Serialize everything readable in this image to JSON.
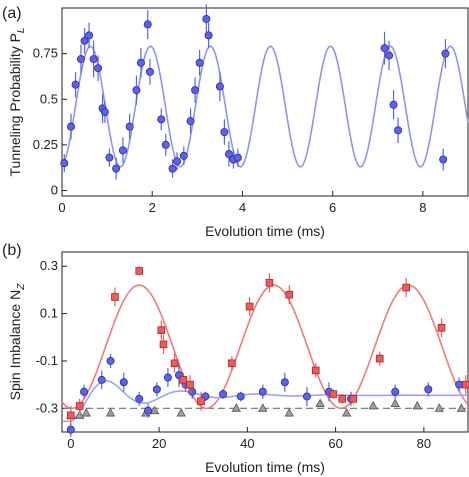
{
  "chart_data": [
    {
      "panel_label": "(a)",
      "type": "scatter",
      "xlabel": "Evolution time (ms)",
      "ylabel_main": "Tunneling Probability P",
      "ylabel_sub": "L",
      "xlim": [
        0,
        9
      ],
      "ylim": [
        -0.03,
        1.0
      ],
      "xticks": [
        0,
        2,
        4,
        6,
        8
      ],
      "yticks": [
        0,
        0.25,
        0.5,
        0.75
      ],
      "ytick_labels": [
        "0",
        "0.25",
        "0.5",
        "0.75"
      ],
      "grid": false,
      "colors": {
        "points": "#5b62ee",
        "fit": "#8f95ec",
        "error": "#5b62ee"
      },
      "fit": {
        "period_ms": 1.33,
        "amplitude": 0.33,
        "offset": 0.46,
        "phase_ms": 0.63
      },
      "points": [
        {
          "x": 0.05,
          "y": 0.15,
          "e": 0.05
        },
        {
          "x": 0.2,
          "y": 0.35,
          "e": 0.07
        },
        {
          "x": 0.3,
          "y": 0.58,
          "e": 0.07
        },
        {
          "x": 0.42,
          "y": 0.72,
          "e": 0.08
        },
        {
          "x": 0.5,
          "y": 0.82,
          "e": 0.07
        },
        {
          "x": 0.6,
          "y": 0.85,
          "e": 0.07
        },
        {
          "x": 0.7,
          "y": 0.72,
          "e": 0.1
        },
        {
          "x": 0.8,
          "y": 0.67,
          "e": 0.07
        },
        {
          "x": 0.9,
          "y": 0.45,
          "e": 0.08
        },
        {
          "x": 0.95,
          "y": 0.43,
          "e": 0.06
        },
        {
          "x": 1.05,
          "y": 0.18,
          "e": 0.05
        },
        {
          "x": 1.2,
          "y": 0.12,
          "e": 0.06
        },
        {
          "x": 1.35,
          "y": 0.22,
          "e": 0.07
        },
        {
          "x": 1.5,
          "y": 0.35,
          "e": 0.07
        },
        {
          "x": 1.65,
          "y": 0.55,
          "e": 0.08
        },
        {
          "x": 1.75,
          "y": 0.7,
          "e": 0.08
        },
        {
          "x": 1.9,
          "y": 0.91,
          "e": 0.08
        },
        {
          "x": 1.95,
          "y": 0.65,
          "e": 0.07
        },
        {
          "x": 2.2,
          "y": 0.39,
          "e": 0.06
        },
        {
          "x": 2.3,
          "y": 0.25,
          "e": 0.06
        },
        {
          "x": 2.45,
          "y": 0.12,
          "e": 0.05
        },
        {
          "x": 2.55,
          "y": 0.16,
          "e": 0.05
        },
        {
          "x": 2.7,
          "y": 0.19,
          "e": 0.05
        },
        {
          "x": 2.85,
          "y": 0.38,
          "e": 0.07
        },
        {
          "x": 2.95,
          "y": 0.55,
          "e": 0.07
        },
        {
          "x": 3.05,
          "y": 0.7,
          "e": 0.07
        },
        {
          "x": 3.2,
          "y": 0.94,
          "e": 0.08
        },
        {
          "x": 3.25,
          "y": 0.85,
          "e": 0.07
        },
        {
          "x": 3.5,
          "y": 0.57,
          "e": 0.08
        },
        {
          "x": 3.6,
          "y": 0.32,
          "e": 0.07
        },
        {
          "x": 3.7,
          "y": 0.2,
          "e": 0.07
        },
        {
          "x": 3.8,
          "y": 0.17,
          "e": 0.05
        },
        {
          "x": 3.9,
          "y": 0.18,
          "e": 0.05
        },
        {
          "x": 7.15,
          "y": 0.78,
          "e": 0.09
        },
        {
          "x": 7.25,
          "y": 0.74,
          "e": 0.08
        },
        {
          "x": 7.35,
          "y": 0.47,
          "e": 0.08
        },
        {
          "x": 7.45,
          "y": 0.33,
          "e": 0.07
        },
        {
          "x": 8.45,
          "y": 0.17,
          "e": 0.06
        },
        {
          "x": 8.5,
          "y": 0.75,
          "e": 0.08
        }
      ]
    },
    {
      "panel_label": "(b)",
      "type": "scatter",
      "xlabel": "Evolution time (ms)",
      "ylabel_main": "Spin Imbalance N",
      "ylabel_sub": "Z",
      "xlim": [
        -2,
        90
      ],
      "ylim": [
        -0.4,
        0.36
      ],
      "xticks": [
        0,
        20,
        40,
        60,
        80
      ],
      "yticks": [
        -0.3,
        -0.1,
        0.1,
        0.3
      ],
      "ytick_labels": [
        "-0.3",
        "-0.1",
        "0.1",
        "0.3"
      ],
      "grid": false,
      "dashed_line_y": -0.3,
      "colors": {
        "red": "#ef5b5b",
        "red_fit": "#ef7a7a",
        "blue": "#5b62ee",
        "blue_fit": "#9da3f0",
        "gray": "#a0a0a0",
        "dashed": "#707070"
      },
      "red_fit": {
        "period_ms": 30.5,
        "amplitude": 0.26,
        "offset": -0.04,
        "peak_ms": 15.5,
        "floor": -0.3
      },
      "blue_fit": {
        "offset": -0.245,
        "amplitude": 0.11,
        "decay_ms": 14,
        "peak_ms": 8.5
      },
      "red_points": [
        {
          "x": 0,
          "y": -0.33,
          "e": 0.04
        },
        {
          "x": 2,
          "y": -0.29,
          "e": 0.03
        },
        {
          "x": 10,
          "y": 0.17,
          "e": 0.04
        },
        {
          "x": 15.5,
          "y": 0.28,
          "e": 0.02
        },
        {
          "x": 20.5,
          "y": 0.03,
          "e": 0.04
        },
        {
          "x": 21,
          "y": -0.03,
          "e": 0.04
        },
        {
          "x": 23.5,
          "y": -0.11,
          "e": 0.04
        },
        {
          "x": 25.5,
          "y": -0.18,
          "e": 0.03
        },
        {
          "x": 27,
          "y": -0.2,
          "e": 0.04
        },
        {
          "x": 29.5,
          "y": -0.27,
          "e": 0.04
        },
        {
          "x": 36.5,
          "y": -0.11,
          "e": 0.03
        },
        {
          "x": 40.5,
          "y": 0.13,
          "e": 0.04
        },
        {
          "x": 45,
          "y": 0.23,
          "e": 0.04
        },
        {
          "x": 49.5,
          "y": 0.18,
          "e": 0.04
        },
        {
          "x": 55.5,
          "y": -0.14,
          "e": 0.03
        },
        {
          "x": 59.5,
          "y": -0.24,
          "e": 0.02
        },
        {
          "x": 61.5,
          "y": -0.26,
          "e": 0.02
        },
        {
          "x": 64,
          "y": -0.26,
          "e": 0.02
        },
        {
          "x": 70,
          "y": -0.09,
          "e": 0.03
        },
        {
          "x": 76,
          "y": 0.21,
          "e": 0.04
        },
        {
          "x": 84,
          "y": 0.04,
          "e": 0.04
        },
        {
          "x": 89.5,
          "y": -0.2,
          "e": 0.04
        }
      ],
      "blue_points": [
        {
          "x": 0,
          "y": -0.39,
          "e": 0.03
        },
        {
          "x": 3,
          "y": -0.23,
          "e": 0.03
        },
        {
          "x": 7,
          "y": -0.18,
          "e": 0.04
        },
        {
          "x": 9,
          "y": -0.1,
          "e": 0.03
        },
        {
          "x": 12,
          "y": -0.19,
          "e": 0.04
        },
        {
          "x": 15.5,
          "y": -0.26,
          "e": 0.03
        },
        {
          "x": 17.5,
          "y": -0.31,
          "e": 0.03
        },
        {
          "x": 19.5,
          "y": -0.22,
          "e": 0.03
        },
        {
          "x": 22,
          "y": -0.17,
          "e": 0.04
        },
        {
          "x": 24.5,
          "y": -0.16,
          "e": 0.05
        },
        {
          "x": 26,
          "y": -0.2,
          "e": 0.03
        },
        {
          "x": 27.5,
          "y": -0.23,
          "e": 0.03
        },
        {
          "x": 30.5,
          "y": -0.25,
          "e": 0.02
        },
        {
          "x": 34.5,
          "y": -0.24,
          "e": 0.02
        },
        {
          "x": 38.5,
          "y": -0.25,
          "e": 0.02
        },
        {
          "x": 43.5,
          "y": -0.23,
          "e": 0.03
        },
        {
          "x": 48.5,
          "y": -0.19,
          "e": 0.04
        },
        {
          "x": 53.5,
          "y": -0.25,
          "e": 0.04
        },
        {
          "x": 58.5,
          "y": -0.23,
          "e": 0.04
        },
        {
          "x": 63.5,
          "y": -0.26,
          "e": 0.03
        },
        {
          "x": 73.5,
          "y": -0.23,
          "e": 0.03
        },
        {
          "x": 81,
          "y": -0.22,
          "e": 0.03
        },
        {
          "x": 88,
          "y": -0.2,
          "e": 0.03
        }
      ],
      "gray_points": [
        {
          "x": 0,
          "y": -0.33
        },
        {
          "x": 2,
          "y": -0.33
        },
        {
          "x": 3.5,
          "y": -0.32
        },
        {
          "x": 9,
          "y": -0.32
        },
        {
          "x": 17,
          "y": -0.32
        },
        {
          "x": 19,
          "y": -0.31
        },
        {
          "x": 25,
          "y": -0.32
        },
        {
          "x": 37.5,
          "y": -0.3
        },
        {
          "x": 43.5,
          "y": -0.3
        },
        {
          "x": 49.5,
          "y": -0.32
        },
        {
          "x": 56.5,
          "y": -0.28
        },
        {
          "x": 62.5,
          "y": -0.32
        },
        {
          "x": 68.5,
          "y": -0.29
        },
        {
          "x": 73.5,
          "y": -0.28
        },
        {
          "x": 78.5,
          "y": -0.29
        },
        {
          "x": 83.5,
          "y": -0.3
        },
        {
          "x": 88.5,
          "y": -0.3
        }
      ]
    }
  ]
}
